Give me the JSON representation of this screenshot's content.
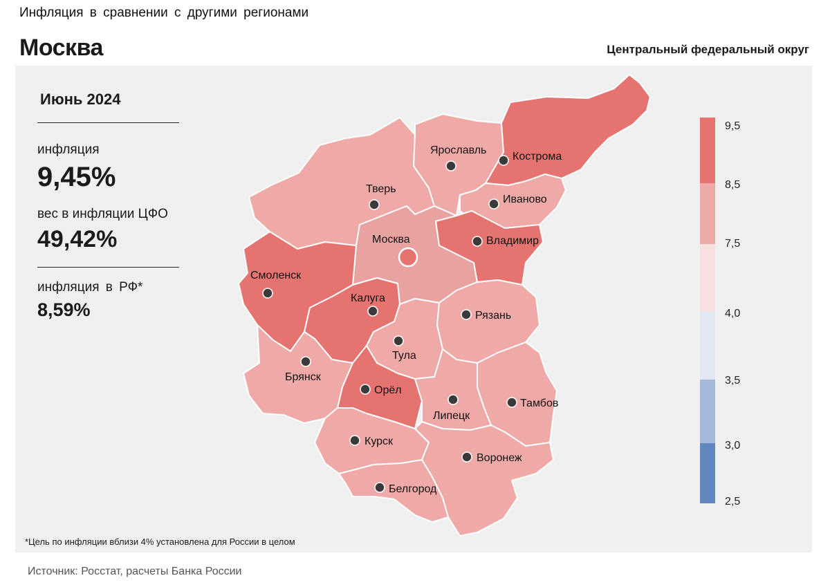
{
  "header": {
    "subtitle": "Инфляция в сравнении с другими регионами",
    "region": "Москва",
    "district": "Центральный федеральный округ"
  },
  "info": {
    "period": "Июнь 2024",
    "inflation_label": "инфляция",
    "inflation_value": "9,45%",
    "weight_label": "вес в инфляции ЦФО",
    "weight_value": "49,42%",
    "rf_label": "инфляция в РФ*",
    "rf_value": "8,59%"
  },
  "legend": {
    "bins": [
      {
        "from": "8,5",
        "to": "9,5",
        "color": "#e57470"
      },
      {
        "from": "7,5",
        "to": "8,5",
        "color": "#efaaa8"
      },
      {
        "from": "4,0",
        "to": "7,5",
        "color": "#f6e0e0"
      },
      {
        "from": "3,5",
        "to": "4,0",
        "color": "#e1e7f3"
      },
      {
        "from": "3,0",
        "to": "3,5",
        "color": "#a7b9db"
      },
      {
        "from": "2,5",
        "to": "3,0",
        "color": "#6287c3"
      }
    ],
    "ticks": [
      "9,5",
      "8,5",
      "7,5",
      "4,0",
      "3,5",
      "3,0",
      "2,5"
    ]
  },
  "map": {
    "colors": {
      "high": "#e57470",
      "mid": "#efaaa8",
      "moscow": "#e8a3a1",
      "border": "#ffffff"
    },
    "cities": [
      {
        "name": "Ярославль",
        "bin": "7,5–8,5"
      },
      {
        "name": "Кострома",
        "bin": "8,5–9,5"
      },
      {
        "name": "Тверь",
        "bin": "7,5–8,5"
      },
      {
        "name": "Иваново",
        "bin": "7,5–8,5"
      },
      {
        "name": "Москва",
        "bin": "8,5–9,5"
      },
      {
        "name": "Владимир",
        "bin": "8,5–9,5"
      },
      {
        "name": "Смоленск",
        "bin": "8,5–9,5"
      },
      {
        "name": "Калуга",
        "bin": "8,5–9,5"
      },
      {
        "name": "Рязань",
        "bin": "7,5–8,5"
      },
      {
        "name": "Тула",
        "bin": "7,5–8,5"
      },
      {
        "name": "Брянск",
        "bin": "7,5–8,5"
      },
      {
        "name": "Орёл",
        "bin": "8,5–9,5"
      },
      {
        "name": "Тамбов",
        "bin": "7,5–8,5"
      },
      {
        "name": "Липецк",
        "bin": "7,5–8,5"
      },
      {
        "name": "Курск",
        "bin": "7,5–8,5"
      },
      {
        "name": "Воронеж",
        "bin": "7,5–8,5"
      },
      {
        "name": "Белгород",
        "bin": "7,5–8,5"
      }
    ]
  },
  "footnote": "*Цель по инфляции вблизи 4% установлена для России в целом",
  "source": "Источник: Росстат, расчеты Банка России"
}
